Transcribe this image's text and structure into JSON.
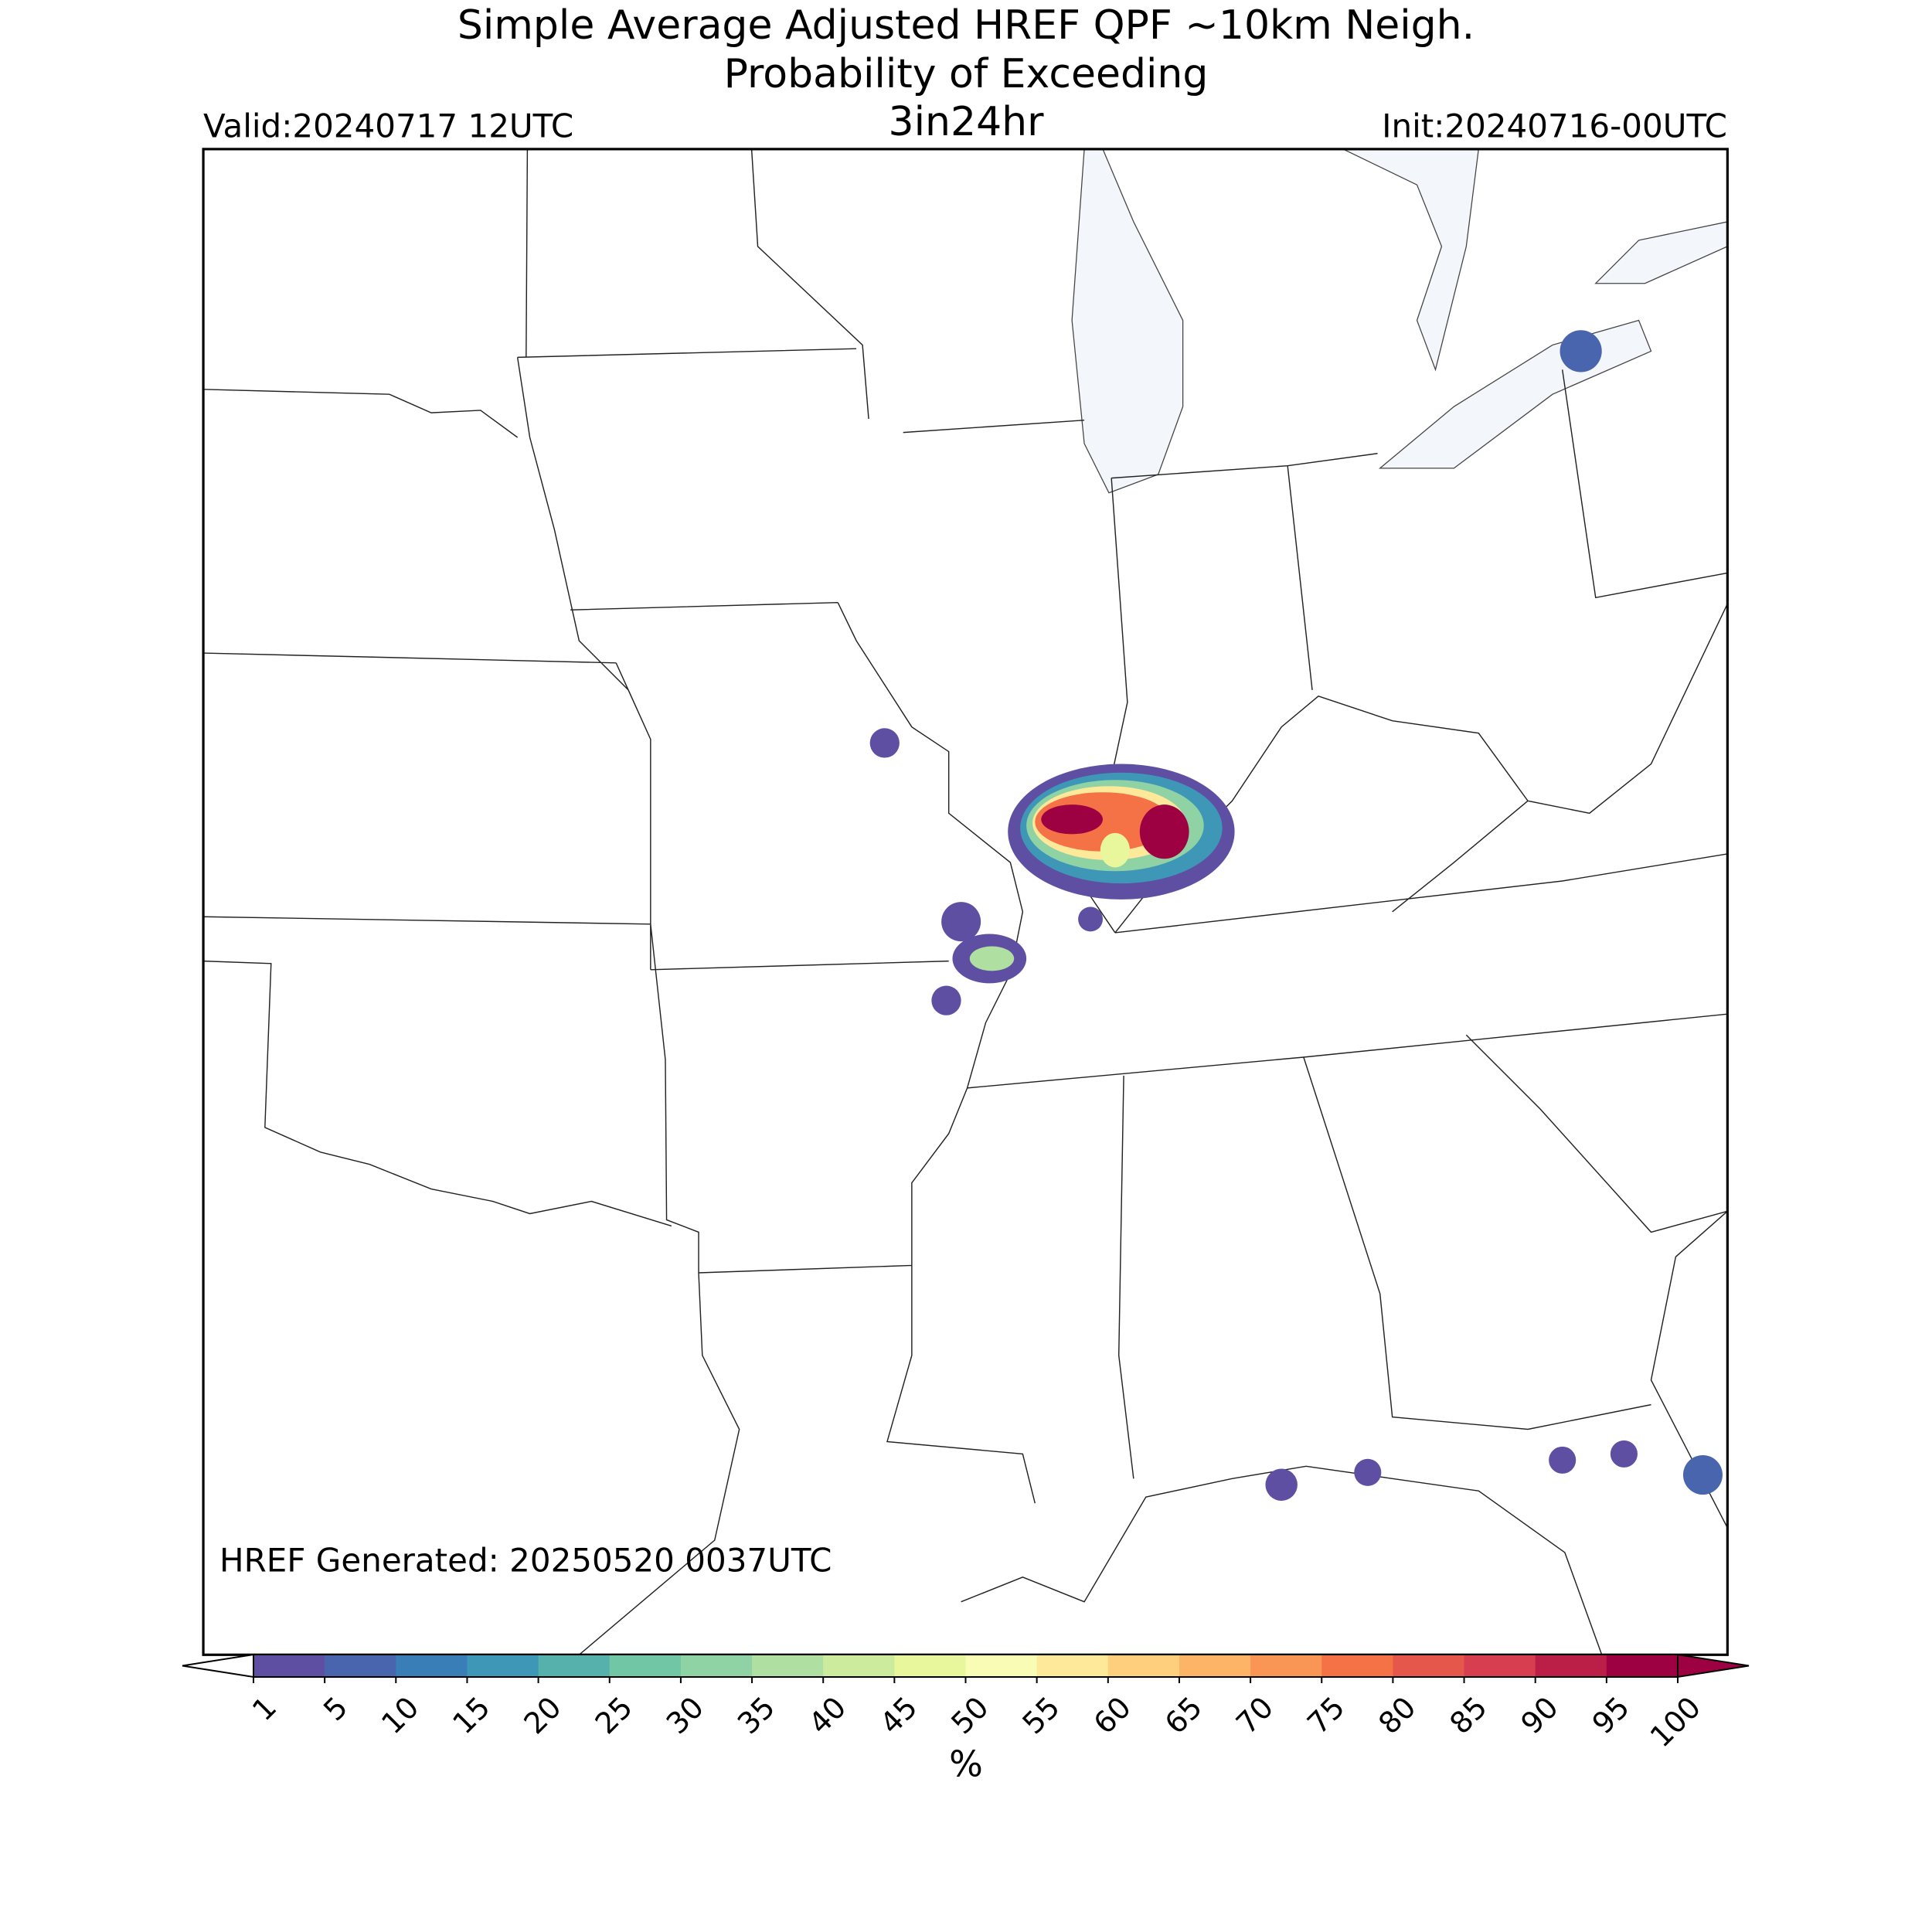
{
  "title": {
    "line1": "Simple Average Adjusted HREF QPF ~10km Neigh.",
    "line2": "Probability of Exceeding",
    "threshold": "3in24hr",
    "valid": "Valid:20240717 12UTC",
    "init": "Init:20240716-00UTC"
  },
  "annotation": "HREF Generated: 20250520 0037UTC",
  "colorbar": {
    "levels": [
      1,
      5,
      10,
      15,
      20,
      25,
      30,
      35,
      40,
      45,
      50,
      55,
      60,
      65,
      70,
      75,
      80,
      85,
      90,
      95,
      100
    ],
    "colors": [
      "#5e4fa2",
      "#4965ae",
      "#3a7eb8",
      "#3f97b7",
      "#56b0ac",
      "#71c6a5",
      "#8fd2a4",
      "#b0dfa2",
      "#cdeb9d",
      "#e8f69c",
      "#f8fcb4",
      "#fee89a",
      "#fed07e",
      "#fdb466",
      "#fa9655",
      "#f47245",
      "#e5574a",
      "#d73e4f",
      "#bb1f48",
      "#9e0142"
    ],
    "label": "%",
    "extend": "both"
  }
}
